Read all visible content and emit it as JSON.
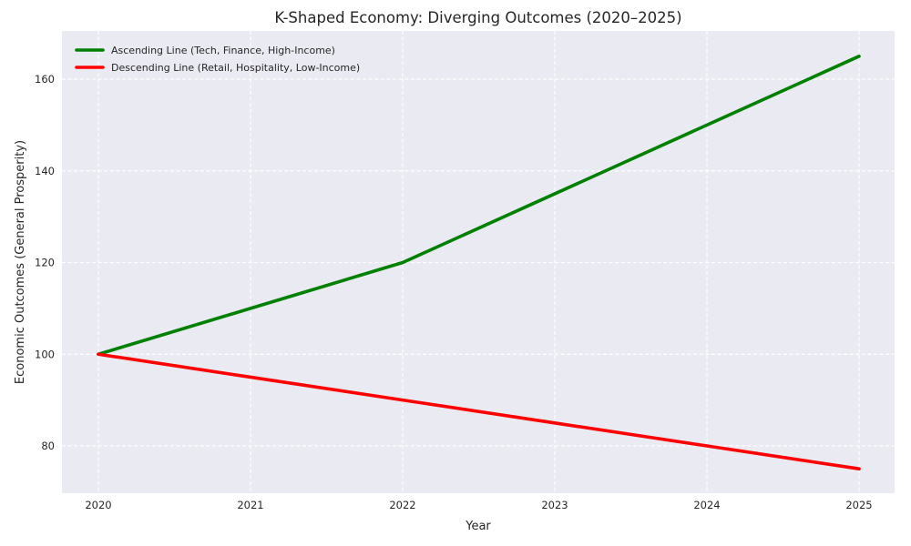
{
  "chart_data": {
    "type": "line",
    "title": "K-Shaped Economy: Diverging Outcomes (2020–2025)",
    "xlabel": "Year",
    "ylabel": "Economic Outcomes (General Prosperity)",
    "x": [
      2020,
      2021,
      2022,
      2023,
      2024,
      2025
    ],
    "xticklabels": [
      "2020",
      "2021",
      "2022",
      "2023",
      "2024",
      "2025"
    ],
    "yticks": [
      80,
      100,
      120,
      140,
      160
    ],
    "xlim": [
      2019.75,
      2025.25
    ],
    "ylim": [
      69.7,
      170.5
    ],
    "grid": true,
    "grid_style": "dashed",
    "legend_position": "upper-left",
    "legend_frame": false,
    "series": [
      {
        "name": "Ascending Line (Tech, Finance, High-Income)",
        "color": "#008000",
        "values": [
          100,
          110,
          120,
          135,
          150,
          165
        ]
      },
      {
        "name": "Descending Line (Retail, Hospitality, Low-Income)",
        "color": "#ff0000",
        "values": [
          100,
          95,
          90,
          85,
          80,
          75
        ]
      }
    ],
    "colors": {
      "plot_background": "#eaeaf2",
      "figure_background": "#ffffff",
      "gridline": "#ffffff",
      "text": "#262626"
    }
  }
}
